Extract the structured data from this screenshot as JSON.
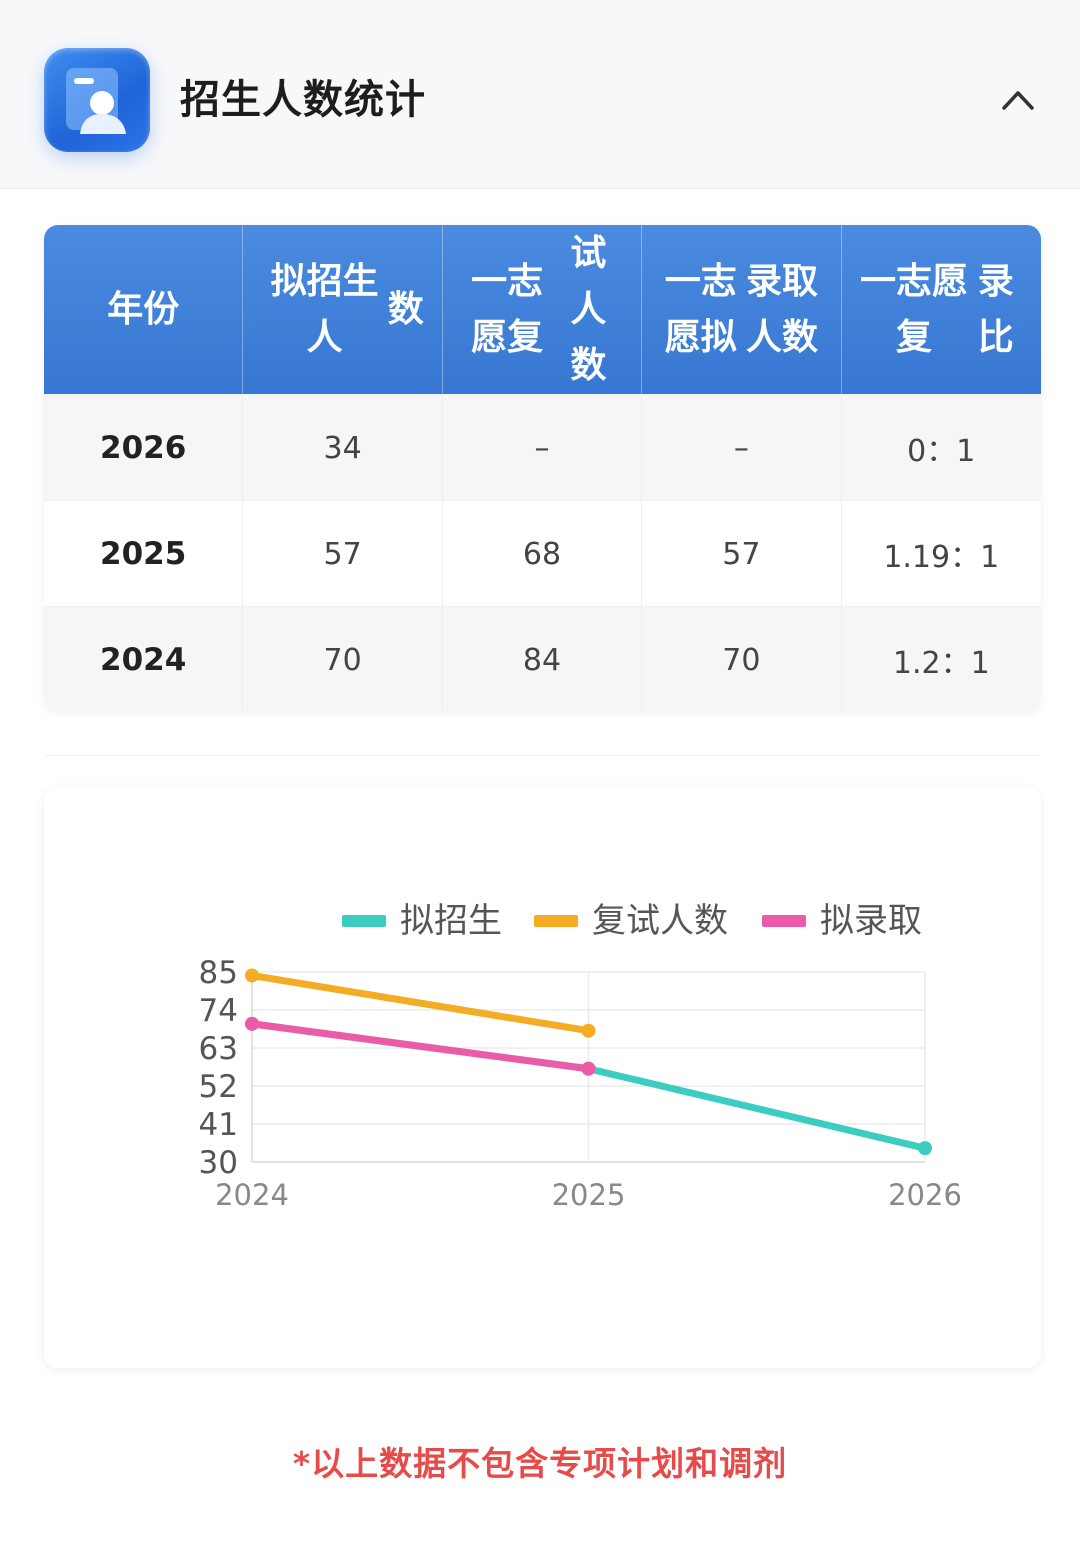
{
  "header": {
    "title": "招生人数统计",
    "icon": "student-profile-icon",
    "collapse_icon": "chevron-up-icon"
  },
  "table": {
    "columns": [
      "年份",
      "拟招生人数",
      "一志愿复试人数",
      "一志愿拟录取人数",
      "一志愿复录比"
    ],
    "column_lines": [
      [
        "年份"
      ],
      [
        "拟招生人",
        "数"
      ],
      [
        "一志愿复",
        "试人数"
      ],
      [
        "一志愿拟",
        "录取人数"
      ],
      [
        "一志愿复",
        "录比"
      ]
    ],
    "rows": [
      [
        "2026",
        "34",
        "–",
        "–",
        "0：1"
      ],
      [
        "2025",
        "57",
        "68",
        "57",
        "1.19：1"
      ],
      [
        "2024",
        "70",
        "84",
        "70",
        "1.2：1"
      ]
    ]
  },
  "chart_data": {
    "type": "line",
    "x": [
      "2024",
      "2025",
      "2026"
    ],
    "series": [
      {
        "name": "拟招生",
        "color": "#3ccdc0",
        "values": [
          70,
          57,
          34
        ]
      },
      {
        "name": "复试人数",
        "color": "#f3ac23",
        "values": [
          84,
          68,
          null
        ]
      },
      {
        "name": "拟录取",
        "color": "#ec5aa8",
        "values": [
          70,
          57,
          null
        ]
      }
    ],
    "y_ticks": [
      "85",
      "74",
      "63",
      "52",
      "41",
      "30"
    ],
    "ylim": [
      30,
      85
    ],
    "grid": true,
    "legend_position": "top"
  },
  "footnote": "*以上数据不包含专项计划和调剂"
}
